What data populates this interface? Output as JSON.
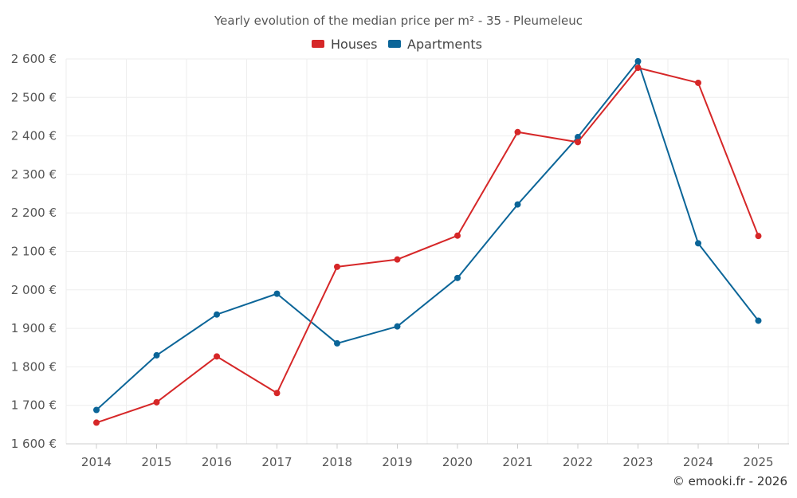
{
  "chart_data": {
    "type": "line",
    "title": "Yearly evolution of the median price per m² - 35 - Pleumeleuc",
    "categories": [
      "2014",
      "2015",
      "2016",
      "2017",
      "2018",
      "2019",
      "2020",
      "2021",
      "2022",
      "2023",
      "2024",
      "2025"
    ],
    "series": [
      {
        "name": "Houses",
        "color": "#d62728",
        "values": [
          1655,
          1708,
          1827,
          1732,
          2060,
          2079,
          2141,
          2410,
          2384,
          2577,
          2538,
          2140
        ]
      },
      {
        "name": "Apartments",
        "color": "#0b6598",
        "values": [
          1688,
          1830,
          1936,
          1990,
          1861,
          1905,
          2031,
          2222,
          2397,
          2594,
          2121,
          1920
        ]
      }
    ],
    "ylim": [
      1600,
      2600
    ],
    "yticks": [
      "1 600 €",
      "1 700 €",
      "1 800 €",
      "1 900 €",
      "2 000 €",
      "2 100 €",
      "2 200 €",
      "2 300 €",
      "2 400 €",
      "2 500 €",
      "2 600 €"
    ],
    "ytick_values": [
      1600,
      1700,
      1800,
      1900,
      2000,
      2100,
      2200,
      2300,
      2400,
      2500,
      2600
    ],
    "xlabel": "",
    "ylabel": "",
    "grid": true,
    "legend_position": "top-center"
  },
  "credit": "© emooki.fr - 2026"
}
